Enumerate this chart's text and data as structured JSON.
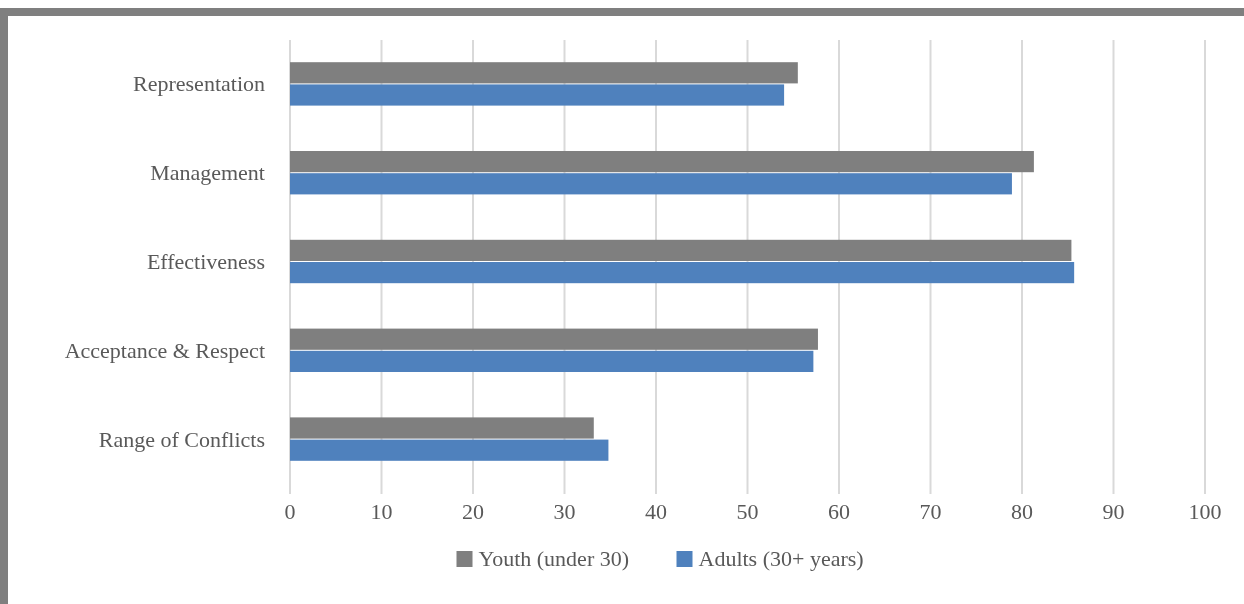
{
  "chart_data": {
    "type": "bar",
    "orientation": "horizontal",
    "categories": [
      "Representation",
      "Management",
      "Effectiveness",
      "Acceptance & Respect",
      "Range of Conflicts"
    ],
    "series": [
      {
        "name": "Youth (under 30)",
        "color": "#7f7f7f",
        "values": [
          55.5,
          81.3,
          85.4,
          57.7,
          33.2
        ]
      },
      {
        "name": "Adults (30+ years)",
        "color": "#4f81bd",
        "values": [
          54.0,
          78.9,
          85.7,
          57.2,
          34.8
        ]
      }
    ],
    "xlim": [
      0,
      100
    ],
    "xticks": [
      0,
      10,
      20,
      30,
      40,
      50,
      60,
      70,
      80,
      90,
      100
    ],
    "grid": "x",
    "legend": "bottom"
  }
}
